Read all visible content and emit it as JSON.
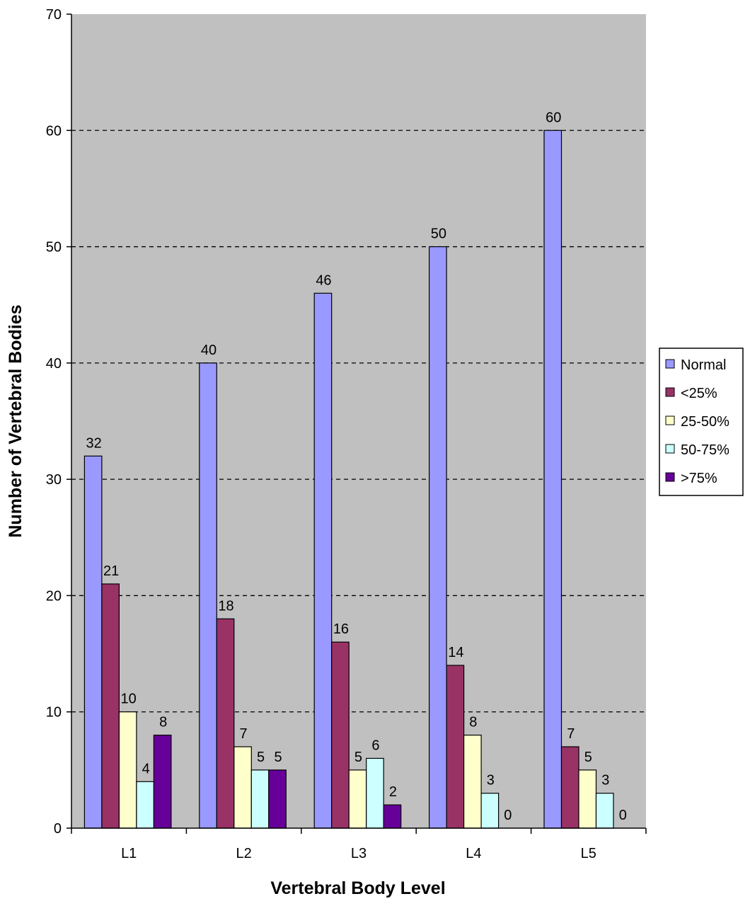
{
  "chart_data": {
    "type": "bar",
    "title": "",
    "xlabel": "Vertebral Body Level",
    "ylabel": "Number of Vertebral Bodies",
    "ylim": [
      0,
      70
    ],
    "yticks": [
      0,
      10,
      20,
      30,
      40,
      50,
      60,
      70
    ],
    "grid": true,
    "legend_position": "right",
    "categories": [
      "L1",
      "L2",
      "L3",
      "L4",
      "L5"
    ],
    "series": [
      {
        "name": "Normal",
        "color": "#9999ff",
        "values": [
          32,
          40,
          46,
          50,
          60
        ],
        "labels": [
          "32",
          "40",
          "46",
          "50",
          "60"
        ]
      },
      {
        "name": "<25%",
        "color": "#993366",
        "values": [
          21,
          18,
          16,
          14,
          7
        ],
        "labels": [
          "21",
          "18",
          "16",
          "14",
          "7"
        ]
      },
      {
        "name": "25-50%",
        "color": "#ffffcc",
        "values": [
          10,
          7,
          5,
          8,
          5
        ],
        "labels": [
          "10",
          "7",
          "5",
          "8",
          "5"
        ]
      },
      {
        "name": "50-75%",
        "color": "#ccffff",
        "values": [
          4,
          5,
          6,
          3,
          3
        ],
        "labels": [
          "4",
          "5",
          "6",
          "3",
          "3"
        ]
      },
      {
        "name": ">75%",
        "color": "#660099",
        "values": [
          8,
          5,
          2,
          0,
          0
        ],
        "labels": [
          "8",
          "5",
          "2",
          "0",
          "0"
        ]
      }
    ],
    "plot_background": "#c0c0c0"
  }
}
